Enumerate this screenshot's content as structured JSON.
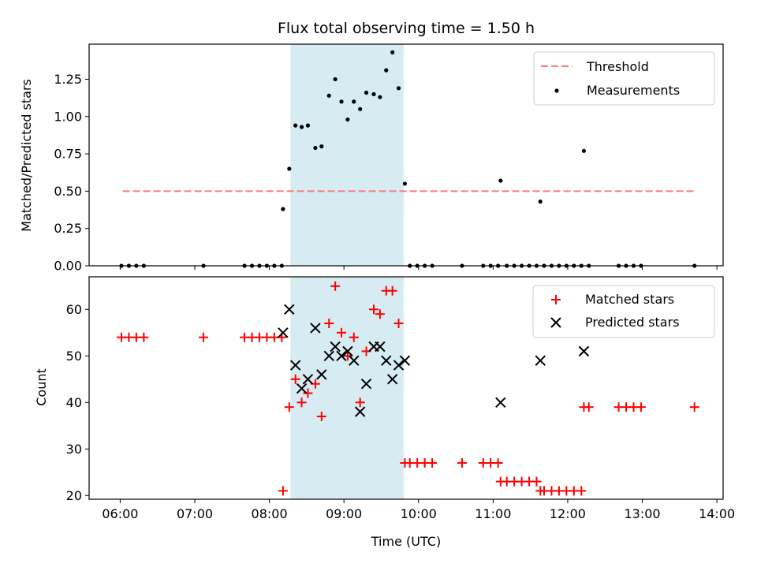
{
  "chart_data": [
    {
      "type": "scatter",
      "title": "Flux total observing time = 1.50 h",
      "ylabel": "Matched/Predicted stars",
      "xlabel": "",
      "xlim": [
        "05:35",
        "14:05"
      ],
      "ylim": [
        0,
        1.485
      ],
      "x_ticks": [
        "06:00",
        "07:00",
        "08:00",
        "09:00",
        "10:00",
        "11:00",
        "12:00",
        "13:00",
        "14:00"
      ],
      "y_ticks": [
        "0.00",
        "0.25",
        "0.50",
        "0.75",
        "1.00",
        "1.25"
      ],
      "shaded_region": [
        "08:17",
        "09:48"
      ],
      "threshold": {
        "name": "Threshold",
        "y": 0.5,
        "x": [
          "06:02",
          "13:43"
        ],
        "color": "#ff7777"
      },
      "legend": "top-right",
      "series": [
        {
          "name": "Measurements",
          "color": "#000000",
          "points": [
            [
              "06:01",
              0
            ],
            [
              "06:07",
              0
            ],
            [
              "06:13",
              0
            ],
            [
              "06:19",
              0
            ],
            [
              "07:07",
              0
            ],
            [
              "07:40",
              0
            ],
            [
              "07:46",
              0
            ],
            [
              "07:52",
              0
            ],
            [
              "07:58",
              0
            ],
            [
              "08:04",
              0
            ],
            [
              "08:10",
              0
            ],
            [
              "08:11",
              0.38
            ],
            [
              "08:16",
              0.65
            ],
            [
              "08:21",
              0.94
            ],
            [
              "08:26",
              0.93
            ],
            [
              "08:31",
              0.94
            ],
            [
              "08:37",
              0.79
            ],
            [
              "08:42",
              0.8
            ],
            [
              "08:48",
              1.14
            ],
            [
              "08:53",
              1.25
            ],
            [
              "08:58",
              1.1
            ],
            [
              "09:03",
              0.98
            ],
            [
              "09:08",
              1.1
            ],
            [
              "09:13",
              1.05
            ],
            [
              "09:18",
              1.16
            ],
            [
              "09:24",
              1.15
            ],
            [
              "09:29",
              1.13
            ],
            [
              "09:34",
              1.31
            ],
            [
              "09:39",
              1.43
            ],
            [
              "09:44",
              1.19
            ],
            [
              "09:49",
              0.55
            ],
            [
              "09:53",
              0
            ],
            [
              "09:59",
              0
            ],
            [
              "10:05",
              0
            ],
            [
              "10:11",
              0
            ],
            [
              "10:35",
              0
            ],
            [
              "10:52",
              0
            ],
            [
              "10:58",
              0
            ],
            [
              "11:04",
              0
            ],
            [
              "11:06",
              0.57
            ],
            [
              "11:11",
              0
            ],
            [
              "11:17",
              0
            ],
            [
              "11:23",
              0
            ],
            [
              "11:29",
              0
            ],
            [
              "11:35",
              0
            ],
            [
              "11:38",
              0.43
            ],
            [
              "11:41",
              0
            ],
            [
              "11:47",
              0
            ],
            [
              "11:53",
              0
            ],
            [
              "11:59",
              0
            ],
            [
              "12:05",
              0
            ],
            [
              "12:11",
              0
            ],
            [
              "12:13",
              0.77
            ],
            [
              "12:17",
              0
            ],
            [
              "12:41",
              0
            ],
            [
              "12:47",
              0
            ],
            [
              "12:53",
              0
            ],
            [
              "12:59",
              0
            ],
            [
              "13:42",
              0
            ]
          ]
        }
      ]
    },
    {
      "type": "scatter",
      "title": "",
      "xlabel": "Time (UTC)",
      "ylabel": "Count",
      "xlim": [
        "05:35",
        "14:05"
      ],
      "ylim": [
        19.2,
        67
      ],
      "x_ticks": [
        "06:00",
        "07:00",
        "08:00",
        "09:00",
        "10:00",
        "11:00",
        "12:00",
        "13:00",
        "14:00"
      ],
      "y_ticks": [
        "20",
        "30",
        "40",
        "50",
        "60"
      ],
      "shaded_region": [
        "08:17",
        "09:48"
      ],
      "legend": "top-right",
      "series": [
        {
          "name": "Matched stars",
          "marker": "+",
          "color": "#ff0000",
          "points": [
            [
              "06:01",
              54
            ],
            [
              "06:07",
              54
            ],
            [
              "06:13",
              54
            ],
            [
              "06:19",
              54
            ],
            [
              "07:07",
              54
            ],
            [
              "07:40",
              54
            ],
            [
              "07:46",
              54
            ],
            [
              "07:52",
              54
            ],
            [
              "07:58",
              54
            ],
            [
              "08:04",
              54
            ],
            [
              "08:10",
              54
            ],
            [
              "08:11",
              21
            ],
            [
              "08:16",
              39
            ],
            [
              "08:21",
              45
            ],
            [
              "08:26",
              40
            ],
            [
              "08:31",
              42
            ],
            [
              "08:37",
              44
            ],
            [
              "08:42",
              37
            ],
            [
              "08:48",
              57
            ],
            [
              "08:53",
              65
            ],
            [
              "08:58",
              55
            ],
            [
              "09:03",
              50
            ],
            [
              "09:08",
              54
            ],
            [
              "09:13",
              40
            ],
            [
              "09:18",
              51
            ],
            [
              "09:24",
              60
            ],
            [
              "09:29",
              59
            ],
            [
              "09:34",
              64
            ],
            [
              "09:39",
              64
            ],
            [
              "09:44",
              57
            ],
            [
              "09:49",
              27
            ],
            [
              "09:53",
              27
            ],
            [
              "09:59",
              27
            ],
            [
              "10:05",
              27
            ],
            [
              "10:11",
              27
            ],
            [
              "10:35",
              27
            ],
            [
              "10:52",
              27
            ],
            [
              "10:58",
              27
            ],
            [
              "11:04",
              27
            ],
            [
              "11:06",
              23
            ],
            [
              "11:11",
              23
            ],
            [
              "11:17",
              23
            ],
            [
              "11:23",
              23
            ],
            [
              "11:29",
              23
            ],
            [
              "11:35",
              23
            ],
            [
              "11:38",
              21
            ],
            [
              "11:41",
              21
            ],
            [
              "11:47",
              21
            ],
            [
              "11:53",
              21
            ],
            [
              "11:59",
              21
            ],
            [
              "12:05",
              21
            ],
            [
              "12:11",
              21
            ],
            [
              "12:13",
              39
            ],
            [
              "12:17",
              39
            ],
            [
              "12:41",
              39
            ],
            [
              "12:47",
              39
            ],
            [
              "12:53",
              39
            ],
            [
              "12:59",
              39
            ],
            [
              "13:42",
              39
            ]
          ]
        },
        {
          "name": "Predicted stars",
          "marker": "x",
          "color": "#000000",
          "points": [
            [
              "08:11",
              55
            ],
            [
              "08:16",
              60
            ],
            [
              "08:21",
              48
            ],
            [
              "08:26",
              43
            ],
            [
              "08:31",
              45
            ],
            [
              "08:37",
              56
            ],
            [
              "08:42",
              46
            ],
            [
              "08:48",
              50
            ],
            [
              "08:53",
              52
            ],
            [
              "08:58",
              50
            ],
            [
              "09:03",
              51
            ],
            [
              "09:08",
              49
            ],
            [
              "09:13",
              38
            ],
            [
              "09:18",
              44
            ],
            [
              "09:24",
              52
            ],
            [
              "09:29",
              52
            ],
            [
              "09:34",
              49
            ],
            [
              "09:39",
              45
            ],
            [
              "09:44",
              48
            ],
            [
              "09:49",
              49
            ],
            [
              "11:06",
              40
            ],
            [
              "11:38",
              49
            ],
            [
              "12:13",
              51
            ]
          ]
        }
      ]
    }
  ]
}
